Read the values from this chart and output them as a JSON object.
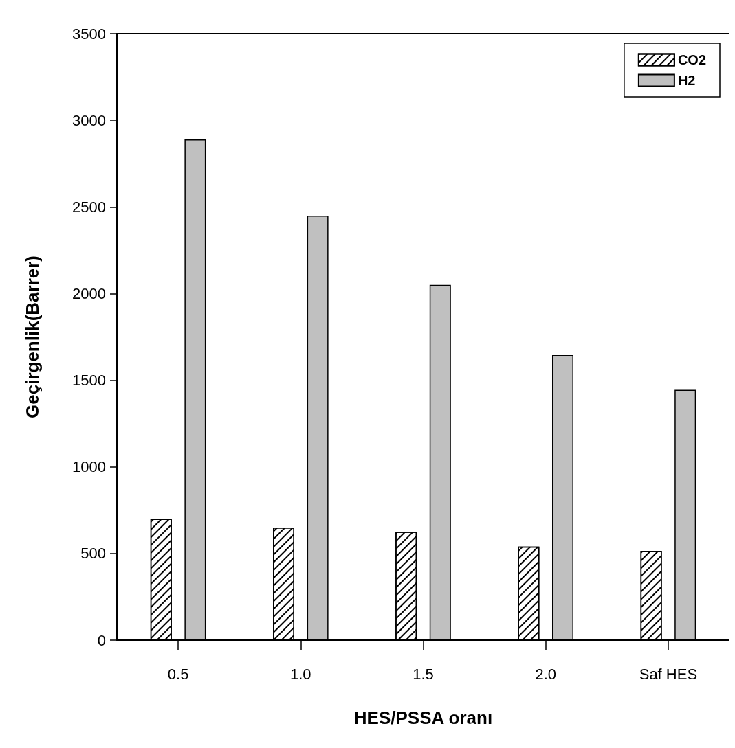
{
  "chart_data": {
    "type": "bar",
    "xlabel": "HES/PSSA oranı",
    "ylabel": "Geçirgenlik(Barrer)",
    "categories": [
      "0.5",
      "1.0",
      "1.5",
      "2.0",
      "Saf HES"
    ],
    "series": [
      {
        "name": "CO2",
        "color": "#ffffff",
        "values": [
          700,
          650,
          625,
          540,
          515
        ]
      },
      {
        "name": "H2",
        "color": "#c0c0c0",
        "values": [
          2890,
          2450,
          2050,
          1645,
          1445
        ]
      }
    ],
    "ylim": [
      0,
      3500
    ],
    "yticks": [
      0,
      500,
      1000,
      1500,
      2000,
      2500,
      3000,
      3500
    ],
    "grid": false,
    "legend": "top right"
  }
}
